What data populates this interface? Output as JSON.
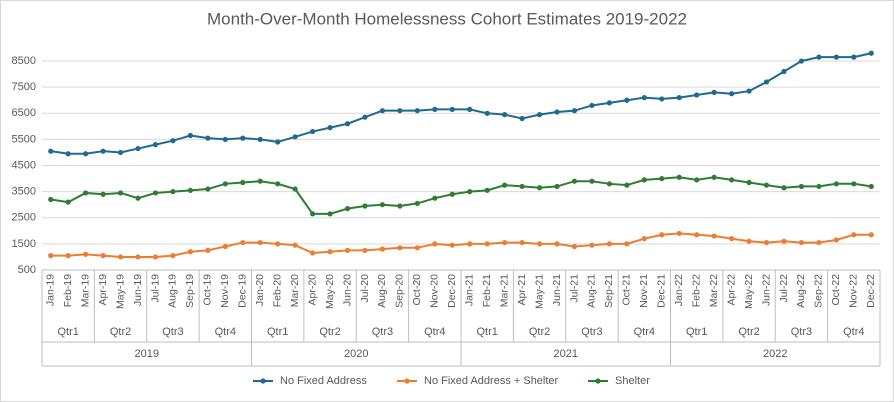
{
  "chart_data": {
    "type": "line",
    "title": "Month-Over-Month Homelessness Cohort Estimates 2019-2022",
    "categories": [
      "Jan-19",
      "Feb-19",
      "Mar-19",
      "Apr-19",
      "May-19",
      "Jun-19",
      "Jul-19",
      "Aug-19",
      "Sep-19",
      "Oct-19",
      "Nov-19",
      "Dec-19",
      "Jan-20",
      "Feb-20",
      "Mar-20",
      "Apr-20",
      "May-20",
      "Jun-20",
      "Jul-20",
      "Aug-20",
      "Sep-20",
      "Oct-20",
      "Nov-20",
      "Dec-20",
      "Jan-21",
      "Feb-21",
      "Mar-21",
      "Apr-21",
      "May-21",
      "Jun-21",
      "Jul-21",
      "Aug-21",
      "Sep-21",
      "Oct-21",
      "Nov-21",
      "Dec-21",
      "Jan-22",
      "Feb-22",
      "Mar-22",
      "Apr-22",
      "May-22",
      "Jun-22",
      "Jul-22",
      "Aug-22",
      "Sep-22",
      "Oct-22",
      "Nov-22",
      "Dec-22"
    ],
    "quarters": [
      "Qtr1",
      "Qtr2",
      "Qtr3",
      "Qtr4",
      "Qtr1",
      "Qtr2",
      "Qtr3",
      "Qtr4",
      "Qtr1",
      "Qtr2",
      "Qtr3",
      "Qtr4",
      "Qtr1",
      "Qtr2",
      "Qtr3",
      "Qtr4"
    ],
    "years": [
      "2019",
      "2020",
      "2021",
      "2022"
    ],
    "series": [
      {
        "name": "No Fixed Address",
        "color": "#1f6a8f",
        "values": [
          5050,
          4950,
          4950,
          5050,
          5000,
          5150,
          5300,
          5450,
          5650,
          5550,
          5500,
          5550,
          5500,
          5400,
          5600,
          5800,
          5950,
          6100,
          6350,
          6600,
          6600,
          6600,
          6650,
          6650,
          6650,
          6500,
          6450,
          6300,
          6450,
          6550,
          6600,
          6800,
          6900,
          7000,
          7100,
          7050,
          7100,
          7200,
          7300,
          7250,
          7350,
          7700,
          8100,
          8500,
          8650,
          8650,
          8650,
          8800
        ]
      },
      {
        "name": "No Fixed Address + Shelter",
        "color": "#ed7d31",
        "values": [
          1050,
          1050,
          1100,
          1050,
          1000,
          1000,
          1000,
          1050,
          1200,
          1250,
          1400,
          1550,
          1550,
          1500,
          1450,
          1150,
          1200,
          1250,
          1250,
          1300,
          1350,
          1350,
          1500,
          1450,
          1500,
          1500,
          1550,
          1550,
          1500,
          1500,
          1400,
          1450,
          1500,
          1500,
          1700,
          1850,
          1900,
          1850,
          1800,
          1700,
          1600,
          1550,
          1600,
          1550,
          1550,
          1650,
          1850,
          1850
        ]
      },
      {
        "name": "Shelter",
        "color": "#2e7d32",
        "values": [
          3200,
          3100,
          3450,
          3400,
          3450,
          3250,
          3450,
          3500,
          3550,
          3600,
          3800,
          3850,
          3900,
          3800,
          3600,
          2650,
          2650,
          2850,
          2950,
          3000,
          2950,
          3050,
          3250,
          3400,
          3500,
          3550,
          3750,
          3700,
          3650,
          3700,
          3900,
          3900,
          3800,
          3750,
          3950,
          4000,
          4050,
          3950,
          4050,
          3950,
          3850,
          3750,
          3650,
          3700,
          3700,
          3800,
          3800,
          3700
        ]
      }
    ],
    "ylim": [
      500,
      9000
    ],
    "yticks": [
      500,
      1500,
      2500,
      3500,
      4500,
      5500,
      6500,
      7500,
      8500
    ],
    "grid": true
  }
}
